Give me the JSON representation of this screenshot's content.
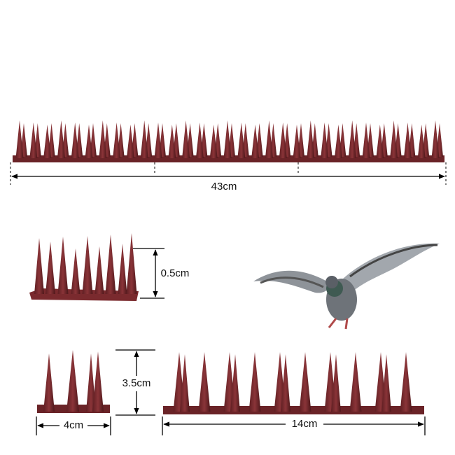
{
  "labels": [
    "43cm",
    "0.5cm",
    "3.5cm",
    "4cm",
    "14cm"
  ]
}
